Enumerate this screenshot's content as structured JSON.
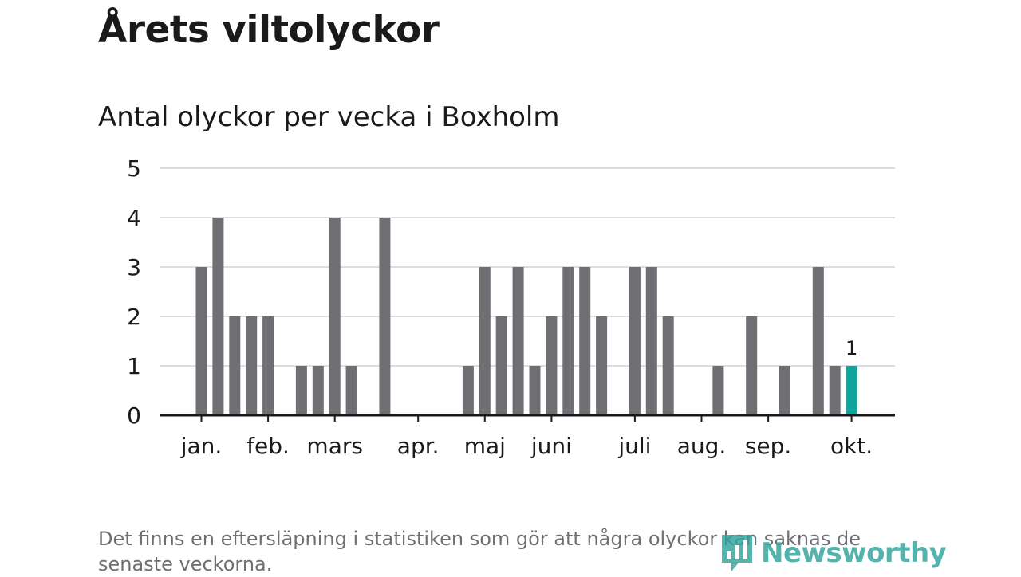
{
  "title": "Årets viltolyckor",
  "subtitle": "Antal olyckor per vecka i Boxholm",
  "footnote": "Det finns en eftersläpning i statistiken som gör att några olyckor kan saknas de senaste veckorna.",
  "logo": {
    "text": "Newsworthy",
    "icon": "bar-chart-speech-bubble-icon"
  },
  "colors": {
    "bar": "#6e6e73",
    "highlight": "#0fa59c",
    "grid": "#dedede",
    "axis": "#1a1a1a"
  },
  "chart_data": {
    "type": "bar",
    "title": "Antal olyckor per vecka i Boxholm",
    "xlabel": "",
    "ylabel": "",
    "ylim": [
      0,
      5
    ],
    "yticks": [
      0,
      1,
      2,
      3,
      4,
      5
    ],
    "grid": true,
    "x_unit": "vecka",
    "weeks": [
      1,
      2,
      3,
      4,
      5,
      6,
      7,
      8,
      9,
      10,
      11,
      12,
      13,
      14,
      15,
      16,
      17,
      18,
      19,
      20,
      21,
      22,
      23,
      24,
      25,
      26,
      27,
      28,
      29,
      30,
      31,
      32,
      33,
      34,
      35,
      36,
      37,
      38,
      39,
      40,
      41,
      42,
      43,
      44,
      45
    ],
    "values": [
      0,
      0,
      3,
      4,
      2,
      2,
      2,
      0,
      1,
      1,
      4,
      1,
      0,
      4,
      0,
      0,
      0,
      0,
      1,
      3,
      2,
      3,
      1,
      2,
      3,
      3,
      2,
      0,
      3,
      3,
      2,
      0,
      0,
      1,
      0,
      2,
      0,
      1,
      0,
      3,
      1,
      1,
      0,
      0,
      0
    ],
    "highlight_week": 42,
    "data_labels": [
      {
        "week": 42,
        "text": "1"
      }
    ],
    "month_labels": [
      {
        "label": "jan.",
        "week": 3
      },
      {
        "label": "feb.",
        "week": 7
      },
      {
        "label": "mars",
        "week": 11
      },
      {
        "label": "apr.",
        "week": 16
      },
      {
        "label": "maj",
        "week": 20
      },
      {
        "label": "juni",
        "week": 24
      },
      {
        "label": "juli",
        "week": 29
      },
      {
        "label": "aug.",
        "week": 33
      },
      {
        "label": "sep.",
        "week": 37
      },
      {
        "label": "okt.",
        "week": 42
      }
    ]
  }
}
